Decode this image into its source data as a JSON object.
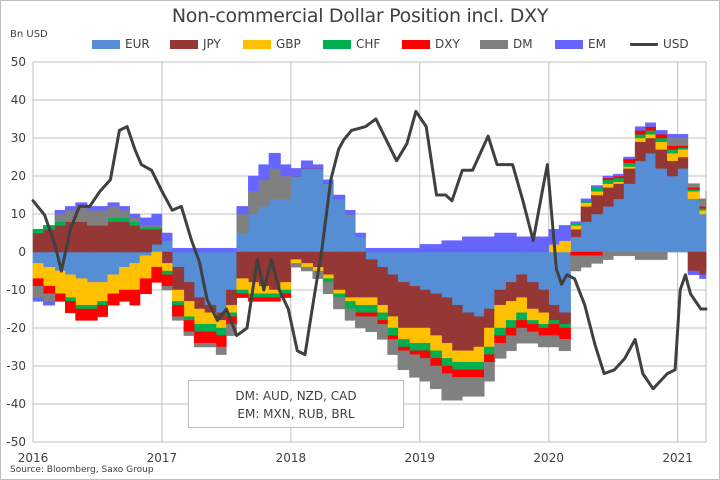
{
  "chart_data": {
    "type": "area",
    "title": "Non-commercial Dollar Position incl. DXY",
    "ylabel": "Bn USD",
    "xlabel": "",
    "ylim": [
      -50,
      50
    ],
    "xlim": [
      2016.0,
      2021.22
    ],
    "yticks": [
      50,
      40,
      30,
      20,
      10,
      0,
      -10,
      -20,
      -30,
      -40,
      -50
    ],
    "xticks": [
      {
        "value": 2016,
        "label": "2016"
      },
      {
        "value": 2017,
        "label": "2017"
      },
      {
        "value": 2018,
        "label": "2018"
      },
      {
        "value": 2019,
        "label": "2019"
      },
      {
        "value": 2020,
        "label": "2020"
      },
      {
        "value": 2021,
        "label": "2021"
      }
    ],
    "grid": true,
    "legend_position": "top",
    "stacked": true,
    "x": [
      2016.0,
      2016.08,
      2016.17,
      2016.25,
      2016.33,
      2016.42,
      2016.5,
      2016.58,
      2016.67,
      2016.75,
      2016.83,
      2016.92,
      2017.0,
      2017.08,
      2017.17,
      2017.25,
      2017.33,
      2017.42,
      2017.5,
      2017.58,
      2017.67,
      2017.75,
      2017.83,
      2017.92,
      2018.0,
      2018.08,
      2018.17,
      2018.25,
      2018.33,
      2018.42,
      2018.5,
      2018.58,
      2018.67,
      2018.75,
      2018.83,
      2018.92,
      2019.0,
      2019.08,
      2019.17,
      2019.25,
      2019.33,
      2019.42,
      2019.5,
      2019.58,
      2019.67,
      2019.75,
      2019.83,
      2019.92,
      2020.0,
      2020.08,
      2020.17,
      2020.25,
      2020.33,
      2020.42,
      2020.5,
      2020.58,
      2020.67,
      2020.75,
      2020.83,
      2020.92,
      2021.0,
      2021.08,
      2021.17,
      2021.22
    ],
    "series": [
      {
        "name": "EUR",
        "color": "#558ed5",
        "values": [
          -3,
          -4,
          -5,
          -6,
          -7,
          -8,
          -8,
          -6,
          -4,
          -3,
          -1,
          2,
          3,
          -4,
          -8,
          -12,
          -14,
          -16,
          -10,
          5,
          10,
          12,
          14,
          14,
          20,
          22,
          22,
          18,
          14,
          10,
          4,
          -2,
          -4,
          -6,
          -8,
          -9,
          -10,
          -11,
          -12,
          -14,
          -16,
          -17,
          -15,
          -10,
          -8,
          -6,
          -8,
          -10,
          -14,
          -16,
          4,
          8,
          10,
          12,
          14,
          18,
          24,
          26,
          22,
          20,
          22,
          14,
          10,
          11
        ]
      },
      {
        "name": "JPY",
        "color": "#953735",
        "values": [
          5,
          6,
          7,
          8,
          8,
          7,
          7,
          8,
          8,
          7,
          6,
          4,
          -3,
          -6,
          -5,
          -3,
          -2,
          -2,
          -4,
          -7,
          -8,
          -9,
          -10,
          -8,
          -2,
          -3,
          -4,
          -6,
          -10,
          -12,
          -12,
          -10,
          -10,
          -11,
          -12,
          -11,
          -10,
          -11,
          -12,
          -12,
          -10,
          -8,
          -5,
          -4,
          -5,
          -6,
          -7,
          -6,
          -4,
          -3,
          2,
          4,
          5,
          5,
          4,
          4,
          5,
          4,
          5,
          4,
          3,
          -5,
          -6,
          -5
        ]
      },
      {
        "name": "GBP",
        "color": "#ffc000",
        "values": [
          -4,
          -5,
          -6,
          -6,
          -7,
          -6,
          -5,
          -5,
          -6,
          -7,
          -6,
          -4,
          -2,
          -3,
          -4,
          -4,
          -3,
          -2,
          -2,
          -3,
          -3,
          -2,
          -1,
          -2,
          -1,
          -1,
          -1,
          -1,
          -1,
          -1,
          -2,
          -2,
          -2,
          -3,
          -3,
          -4,
          -4,
          -4,
          -4,
          -3,
          -3,
          -4,
          -5,
          -6,
          -5,
          -4,
          -3,
          -3,
          2,
          3,
          1,
          1,
          1,
          1,
          0.5,
          0.5,
          1,
          1,
          2,
          2,
          2,
          2,
          1,
          1
        ]
      },
      {
        "name": "CHF",
        "color": "#00b050",
        "values": [
          1,
          1,
          1,
          -1,
          -1,
          -1,
          -1,
          1,
          1,
          1,
          0.5,
          0.5,
          -1,
          -1,
          -1,
          -2,
          -2,
          -2,
          -1,
          -1,
          -1,
          -1,
          -1,
          -1,
          0,
          0,
          0,
          -1,
          -1,
          -2,
          -2,
          -2,
          -2,
          -2,
          -2,
          -2,
          -2,
          -2,
          -2,
          -2,
          -2,
          -2,
          -2,
          -2,
          -2,
          -2,
          -1,
          -1,
          -1,
          -1,
          0.5,
          0.5,
          1,
          1,
          1,
          1,
          1,
          1,
          1,
          1,
          0.5,
          0.5,
          0.5,
          0.5
        ]
      },
      {
        "name": "DXY",
        "color": "#ff0000",
        "values": [
          -2,
          -2,
          -2,
          -3,
          -3,
          -3,
          -3,
          -3,
          -3,
          -4,
          -4,
          -4,
          -3,
          -3,
          -3,
          -3,
          -3,
          -3,
          -2,
          -1,
          -1,
          -1,
          -1,
          -1,
          0,
          0,
          0,
          0,
          0,
          0,
          -1,
          -1,
          -1,
          -1,
          -1,
          -1,
          -2,
          -2,
          -2,
          -2,
          -2,
          -2,
          -2,
          -2,
          -2,
          -2,
          -2,
          -2,
          -3,
          -3,
          -1,
          -1,
          -1,
          0.5,
          0.5,
          1,
          1,
          1,
          1,
          1,
          0.5,
          0.5,
          0.5,
          0.5
        ]
      },
      {
        "name": "DM",
        "color": "#808080",
        "values": [
          -3,
          -2,
          2,
          3,
          4,
          4,
          4,
          3,
          2,
          1,
          0.5,
          0.5,
          -1,
          -1,
          -1,
          -1,
          -1,
          -2,
          -3,
          5,
          6,
          7,
          8,
          6,
          -1,
          -1,
          -2,
          -3,
          -3,
          -3,
          -3,
          -4,
          -4,
          -4,
          -5,
          -6,
          -6,
          -6,
          -7,
          -6,
          -5,
          -5,
          -5,
          -4,
          -4,
          -4,
          -3,
          -3,
          -3,
          -3,
          -4,
          -3,
          -2,
          -2,
          -1,
          -1,
          -2,
          -2,
          -2,
          2,
          2,
          1,
          2,
          3
        ]
      },
      {
        "name": "EM",
        "color": "#6666ff",
        "values": [
          -1,
          -1,
          1,
          1,
          1,
          1,
          1,
          1,
          1,
          1,
          2,
          3,
          2,
          1,
          1,
          1,
          1,
          1,
          1,
          2,
          4,
          4,
          4,
          3,
          2,
          2,
          1,
          1,
          1,
          1,
          1,
          1,
          1,
          1,
          1,
          1,
          2,
          2,
          3,
          3,
          4,
          4,
          4,
          5,
          5,
          4,
          4,
          4,
          4,
          4,
          0.5,
          0.5,
          0.5,
          0.5,
          0.5,
          0.5,
          1,
          1,
          1,
          1,
          1,
          -1,
          -1,
          -1
        ]
      }
    ],
    "line": {
      "name": "USD",
      "color": "#404040",
      "x": [
        2016.0,
        2016.09,
        2016.17,
        2016.22,
        2016.29,
        2016.36,
        2016.44,
        2016.52,
        2016.6,
        2016.67,
        2016.73,
        2016.79,
        2016.84,
        2016.92,
        2017.0,
        2017.08,
        2017.15,
        2017.23,
        2017.29,
        2017.35,
        2017.43,
        2017.5,
        2017.58,
        2017.66,
        2017.74,
        2017.79,
        2017.85,
        2017.91,
        2017.98,
        2018.05,
        2018.11,
        2018.17,
        2018.24,
        2018.31,
        2018.37,
        2018.41,
        2018.47,
        2018.58,
        2018.66,
        2018.74,
        2018.82,
        2018.9,
        2018.97,
        2019.05,
        2019.13,
        2019.2,
        2019.25,
        2019.33,
        2019.41,
        2019.53,
        2019.6,
        2019.72,
        2019.8,
        2019.88,
        2019.95,
        2019.99,
        2020.06,
        2020.1,
        2020.14,
        2020.2,
        2020.28,
        2020.36,
        2020.43,
        2020.51,
        2020.59,
        2020.67,
        2020.73,
        2020.81,
        2020.92,
        2020.98,
        2021.02,
        2021.06,
        2021.1,
        2021.18,
        2021.22
      ],
      "values": [
        13.5,
        9.7,
        2,
        -5,
        6,
        12,
        12,
        16,
        19,
        32,
        33,
        27,
        23,
        21.5,
        16,
        11,
        12,
        3,
        -2.5,
        -12.5,
        -18,
        -15,
        -22,
        -20,
        -2,
        -10,
        -2,
        -10,
        -15,
        -26,
        -27,
        -14,
        0.5,
        19,
        27,
        29.5,
        32,
        33,
        35,
        29.5,
        24,
        28.5,
        37,
        33,
        15,
        15,
        13.5,
        21.5,
        21.5,
        30.5,
        23,
        23,
        13.5,
        3,
        16,
        23,
        -4.5,
        -8.5,
        -6,
        -7,
        -14,
        -24.5,
        -32,
        -31,
        -28,
        -23,
        -32,
        -36,
        -32,
        -31,
        -10,
        -6,
        -11,
        -15,
        -15
      ]
    },
    "annotations": [
      "DM: AUD, NZD, CAD",
      "EM: MXN, RUB, BRL"
    ],
    "source": "Source: Bloomberg, Saxo Group"
  },
  "legend": [
    {
      "label": "EUR",
      "color": "#558ed5",
      "kind": "area"
    },
    {
      "label": "JPY",
      "color": "#953735",
      "kind": "area"
    },
    {
      "label": "GBP",
      "color": "#ffc000",
      "kind": "area"
    },
    {
      "label": "CHF",
      "color": "#00b050",
      "kind": "area"
    },
    {
      "label": "DXY",
      "color": "#ff0000",
      "kind": "area"
    },
    {
      "label": "DM",
      "color": "#808080",
      "kind": "area"
    },
    {
      "label": "EM",
      "color": "#6666ff",
      "kind": "area"
    },
    {
      "label": "USD",
      "color": "#404040",
      "kind": "line"
    }
  ],
  "note": {
    "line1": "DM: AUD, NZD, CAD",
    "line2": "EM: MXN, RUB, BRL"
  },
  "title": "Non-commercial Dollar Position incl. DXY",
  "unit": "Bn USD",
  "source": "Source: Bloomberg, Saxo Group"
}
